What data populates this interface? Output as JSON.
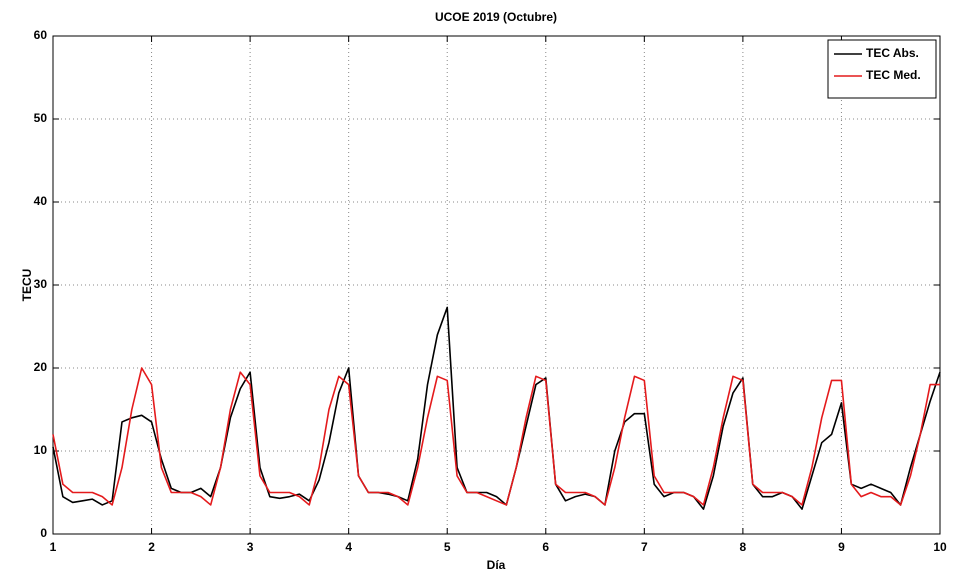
{
  "chart_data": {
    "type": "line",
    "title": "UCOE 2019 (Octubre)",
    "xlabel": "Día",
    "ylabel": "TECU",
    "x": [
      1.0,
      1.1,
      1.2,
      1.3,
      1.4,
      1.5,
      1.6,
      1.7,
      1.8,
      1.9,
      2.0,
      2.1,
      2.2,
      2.3,
      2.4,
      2.5,
      2.6,
      2.7,
      2.8,
      2.9,
      3.0,
      3.1,
      3.2,
      3.3,
      3.4,
      3.5,
      3.6,
      3.7,
      3.8,
      3.9,
      4.0,
      4.1,
      4.2,
      4.3,
      4.4,
      4.5,
      4.6,
      4.7,
      4.8,
      4.9,
      5.0,
      5.1,
      5.2,
      5.3,
      5.4,
      5.5,
      5.6,
      5.7,
      5.8,
      5.9,
      6.0,
      6.1,
      6.2,
      6.3,
      6.4,
      6.5,
      6.6,
      6.7,
      6.8,
      6.9,
      7.0,
      7.1,
      7.2,
      7.3,
      7.4,
      7.5,
      7.6,
      7.7,
      7.8,
      7.9,
      8.0,
      8.1,
      8.2,
      8.3,
      8.4,
      8.5,
      8.6,
      8.7,
      8.8,
      8.9,
      9.0,
      9.1,
      9.2,
      9.3,
      9.4,
      9.5,
      9.6,
      9.7,
      9.8,
      9.9,
      10.0
    ],
    "series": [
      {
        "name": "TEC Abs.",
        "color": "#000000",
        "values": [
          10.5,
          4.5,
          3.8,
          4,
          4.2,
          3.5,
          4,
          13.5,
          14,
          14.3,
          13.5,
          9,
          5.5,
          5,
          5,
          5.5,
          4.5,
          8,
          14,
          17.5,
          19.5,
          8,
          4.5,
          4.3,
          4.5,
          4.8,
          4,
          6.5,
          11,
          17,
          20,
          7,
          5,
          5,
          4.8,
          4.5,
          4,
          9,
          18,
          24,
          27.3,
          8,
          5,
          5,
          5,
          4.5,
          3.5,
          8,
          13,
          18,
          18.8,
          6,
          4,
          4.5,
          4.8,
          4.5,
          3.5,
          10,
          13.5,
          14.5,
          14.5,
          6,
          4.5,
          5,
          5,
          4.5,
          3,
          7,
          13,
          17,
          18.8,
          6,
          4.5,
          4.5,
          5,
          4.5,
          3,
          7,
          11,
          12,
          15.8,
          6,
          5.5,
          6,
          5.5,
          5,
          3.5,
          8,
          12,
          16,
          19.5
        ]
      },
      {
        "name": "TEC Med.",
        "color": "#e41a1c",
        "values": [
          12,
          6,
          5,
          5,
          5,
          4.5,
          3.5,
          8,
          15,
          20,
          18,
          8,
          5,
          5,
          5,
          4.5,
          3.5,
          8,
          15,
          19.5,
          18,
          7,
          5,
          5,
          5,
          4.5,
          3.5,
          8,
          15,
          19,
          18,
          7,
          5,
          5,
          5,
          4.5,
          3.5,
          8,
          14,
          19,
          18.5,
          7,
          5,
          5,
          4.5,
          4,
          3.5,
          8,
          14,
          19,
          18.5,
          6,
          5,
          5,
          5,
          4.5,
          3.5,
          8,
          14,
          19,
          18.5,
          7,
          5,
          5,
          5,
          4.5,
          3.5,
          8,
          14,
          19,
          18.5,
          6,
          5,
          5,
          5,
          4.5,
          3.5,
          8,
          14,
          18.5,
          18.5,
          6,
          4.5,
          5,
          4.5,
          4.5,
          3.5,
          7,
          12,
          18,
          18
        ]
      }
    ],
    "xlim": [
      1,
      10
    ],
    "ylim": [
      0,
      60
    ],
    "xticks": [
      1,
      2,
      3,
      4,
      5,
      6,
      7,
      8,
      9,
      10
    ],
    "yticks": [
      0,
      10,
      20,
      30,
      40,
      50,
      60
    ],
    "grid": true,
    "legend": "upper right"
  }
}
